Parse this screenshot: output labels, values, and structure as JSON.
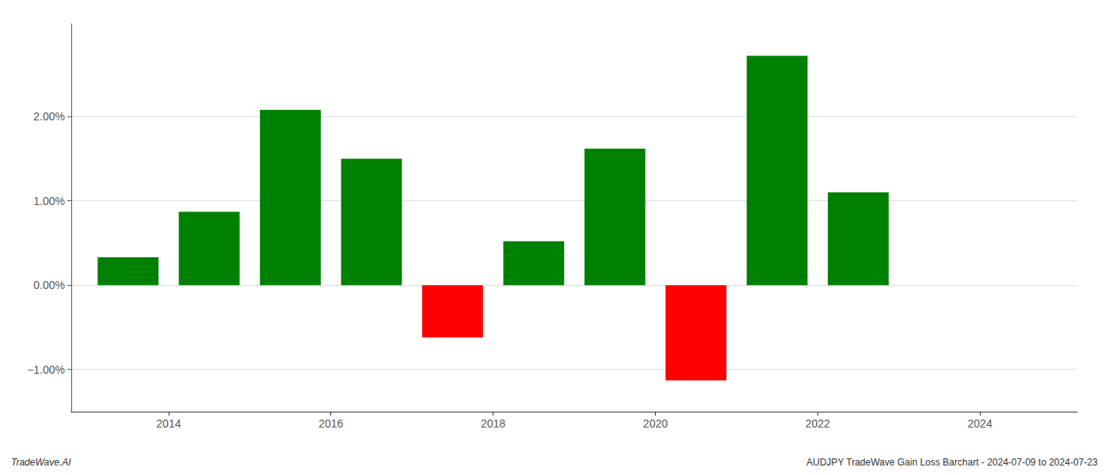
{
  "chart_data": {
    "type": "bar",
    "x": [
      2013.5,
      2014.5,
      2015.5,
      2016.5,
      2017.5,
      2018.5,
      2019.5,
      2020.5,
      2021.5,
      2022.5
    ],
    "values": [
      0.33,
      0.87,
      2.08,
      1.5,
      -0.62,
      0.52,
      1.62,
      -1.13,
      2.72,
      1.1
    ],
    "colors": [
      "#008000",
      "#008000",
      "#008000",
      "#008000",
      "#ff0000",
      "#008000",
      "#008000",
      "#ff0000",
      "#008000",
      "#008000"
    ],
    "xlim": [
      2012.8,
      2025.2
    ],
    "xticks": [
      2014,
      2016,
      2018,
      2020,
      2022,
      2024
    ],
    "ylim": [
      -1.5,
      3.1
    ],
    "yticks": [
      {
        "value": -1.0,
        "label": "−1.00%"
      },
      {
        "value": 0.0,
        "label": "0.00%"
      },
      {
        "value": 1.0,
        "label": "1.00%"
      },
      {
        "value": 2.0,
        "label": "2.00%"
      }
    ],
    "grid": true,
    "annotations": [
      "TradeWave.AI",
      "AUDJPY TradeWave Gain Loss Barchart - 2024-07-09 to 2024-07-23"
    ]
  }
}
